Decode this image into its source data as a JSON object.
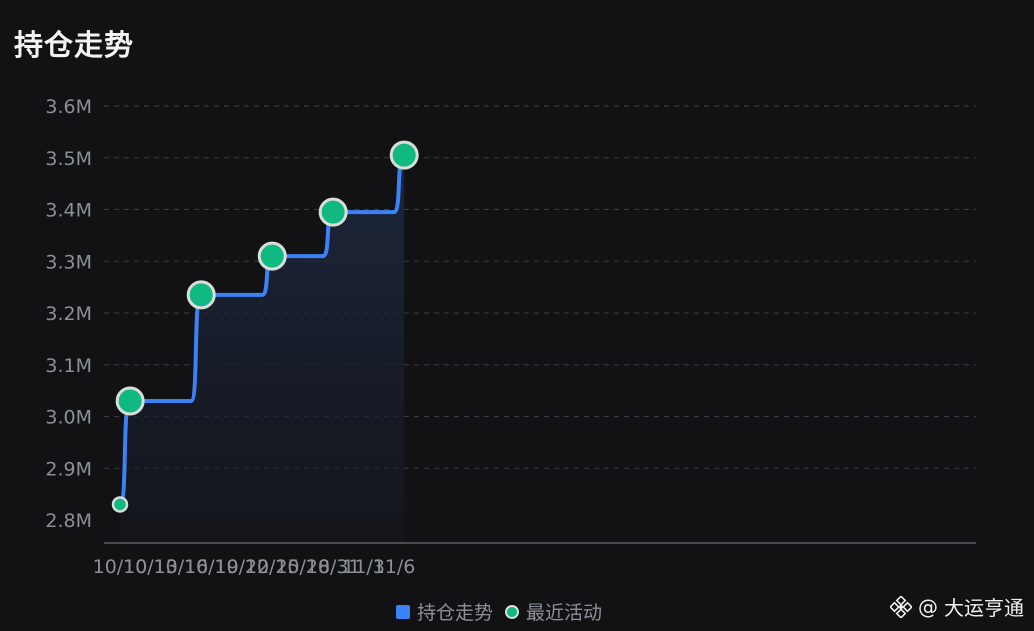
{
  "title": "持仓走势",
  "legend": {
    "line_label": "持仓走势",
    "dot_label": "最近活动"
  },
  "watermark": {
    "at": "@",
    "name": "大运亨通"
  },
  "colors": {
    "background": "#121214",
    "line": "#3b82f6",
    "marker": "#10b981",
    "marker_border": "#d9ded9",
    "grid": "#3a3d44",
    "tick_text": "#8a8f98"
  },
  "chart_data": {
    "type": "line",
    "title": "持仓走势",
    "xlabel": "",
    "ylabel": "",
    "y_unit": "M",
    "ylim": [
      2.76,
      3.6
    ],
    "yticks": [
      2.8,
      2.9,
      3.0,
      3.1,
      3.2,
      3.3,
      3.4,
      3.5,
      3.6
    ],
    "ytick_labels": [
      "2.8M",
      "2.9M",
      "3.0M",
      "3.1M",
      "3.2M",
      "3.3M",
      "3.4M",
      "3.5M",
      "3.6M"
    ],
    "x_range": [
      "10/10",
      "11/7"
    ],
    "xtick_labels": [
      "10/10",
      "10/13",
      "10/16",
      "10/19",
      "10/22",
      "10/25",
      "10/28",
      "10/31",
      "11/3",
      "11/6"
    ],
    "grid": "horizontal dashed",
    "legend_position": "bottom-center",
    "series": [
      {
        "name": "持仓走势",
        "type": "step-smooth area",
        "points": [
          {
            "x": "10/10",
            "y": 2.83
          },
          {
            "x": "10/11",
            "y": 3.03
          },
          {
            "x": "10/17",
            "y": 3.03
          },
          {
            "x": "10/18",
            "y": 3.235
          },
          {
            "x": "10/24",
            "y": 3.235
          },
          {
            "x": "10/25",
            "y": 3.31
          },
          {
            "x": "10/30",
            "y": 3.31
          },
          {
            "x": "10/31",
            "y": 3.395
          },
          {
            "x": "11/6",
            "y": 3.395
          },
          {
            "x": "11/7",
            "y": 3.505
          }
        ]
      },
      {
        "name": "最近活动",
        "type": "markers",
        "points": [
          {
            "x": "10/10",
            "y": 2.83
          },
          {
            "x": "10/11",
            "y": 3.03
          },
          {
            "x": "10/18",
            "y": 3.235
          },
          {
            "x": "10/25",
            "y": 3.31
          },
          {
            "x": "10/31",
            "y": 3.395
          },
          {
            "x": "11/7",
            "y": 3.505
          }
        ]
      }
    ]
  }
}
